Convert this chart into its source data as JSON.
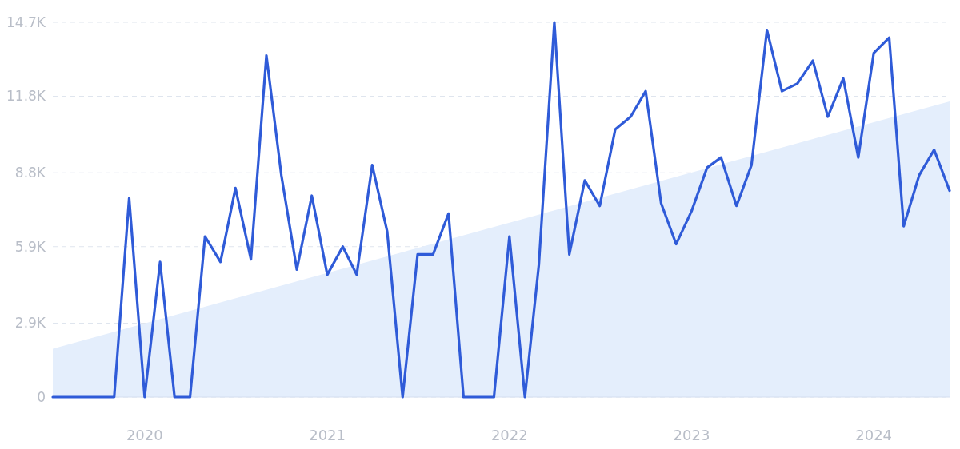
{
  "chart_data": {
    "type": "line",
    "x": [
      "2019-07",
      "2019-08",
      "2019-09",
      "2019-10",
      "2019-11",
      "2019-12",
      "2020-01",
      "2020-02",
      "2020-03",
      "2020-04",
      "2020-05",
      "2020-06",
      "2020-07",
      "2020-08",
      "2020-09",
      "2020-10",
      "2020-11",
      "2020-12",
      "2021-01",
      "2021-02",
      "2021-03",
      "2021-04",
      "2021-05",
      "2021-06",
      "2021-07",
      "2021-08",
      "2021-09",
      "2021-10",
      "2021-11",
      "2021-12",
      "2022-01",
      "2022-02",
      "2022-03",
      "2022-04",
      "2022-05",
      "2022-06",
      "2022-07",
      "2022-08",
      "2022-09",
      "2022-10",
      "2022-11",
      "2022-12",
      "2023-01",
      "2023-02",
      "2023-03",
      "2023-04",
      "2023-05",
      "2023-06",
      "2023-07",
      "2023-08",
      "2023-09",
      "2023-10",
      "2023-11",
      "2023-12",
      "2024-01",
      "2024-02",
      "2024-03",
      "2024-04",
      "2024-05",
      "2024-06"
    ],
    "series": [
      {
        "type": "area",
        "color": "#e4eefc",
        "x": [
          "2019-07",
          "2024-06"
        ],
        "values": [
          1900,
          11600
        ]
      },
      {
        "color": "#2f5bd8",
        "values": [
          0,
          0,
          0,
          0,
          0,
          7800,
          0,
          5300,
          0,
          0,
          6300,
          5300,
          8200,
          5400,
          13400,
          8700,
          5000,
          7900,
          4800,
          5900,
          4800,
          9100,
          6500,
          0,
          5600,
          5600,
          7200,
          0,
          0,
          0,
          6300,
          0,
          5200,
          14700,
          5600,
          8500,
          7500,
          10500,
          11000,
          12000,
          7600,
          6000,
          7300,
          9000,
          9400,
          7500,
          9100,
          14400,
          12000,
          12300,
          13200,
          11000,
          12500,
          9400,
          13500,
          14100,
          6700,
          8700,
          9700,
          8100
        ]
      }
    ],
    "xlim": [
      "2019-07",
      "2024-06"
    ],
    "xticks": [
      {
        "value": "2020-01",
        "label": "2020"
      },
      {
        "value": "2021-01",
        "label": "2021"
      },
      {
        "value": "2022-01",
        "label": "2022"
      },
      {
        "value": "2023-01",
        "label": "2023"
      },
      {
        "value": "2024-01",
        "label": "2024"
      }
    ],
    "ylim": [
      0,
      14700
    ],
    "yticks": [
      0,
      {
        "value": 2900,
        "label": "2.9K"
      },
      {
        "value": 5900,
        "label": "5.9K"
      },
      {
        "value": 8800,
        "label": "8.8K"
      },
      {
        "value": 11800,
        "label": "11.8K"
      },
      {
        "value": 14700,
        "label": "14.7K"
      }
    ],
    "grid": "y"
  }
}
